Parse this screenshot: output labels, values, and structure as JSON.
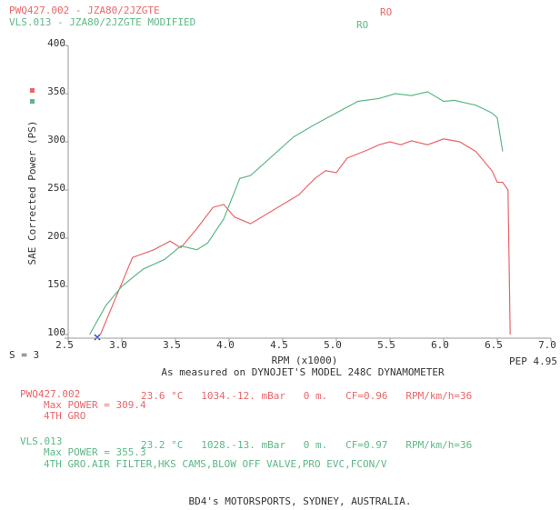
{
  "chart_data": {
    "type": "line",
    "title": "As measured on DYNOJET'S MODEL 248C DYNAMOMETER",
    "x_label": "RPM (x1000)",
    "y_label": "SAE Corrected Power (PS)",
    "xlim": [
      2.5,
      7.0
    ],
    "ylim": [
      100,
      400
    ],
    "xticks": [
      2.5,
      {
        "value": 3,
        "label": "3.0"
      },
      3.5,
      {
        "value": 4,
        "label": "4.0"
      },
      4.5,
      {
        "value": 5,
        "label": "5.0"
      },
      5.5,
      {
        "value": 6,
        "label": "6.0"
      },
      6.5,
      {
        "value": 7,
        "label": "7.0"
      }
    ],
    "yticks": [
      100,
      150,
      200,
      250,
      300,
      350,
      400
    ],
    "smoothing": "S = 3",
    "pep": "PEP 4.95",
    "series": [
      {
        "name": "PWQ427.002 - JZA80/2JZGTE",
        "tag": "RO",
        "color": "#e8676a",
        "x": [
          2.8,
          2.95,
          3.1,
          3.3,
          3.45,
          3.55,
          3.7,
          3.85,
          3.95,
          4.05,
          4.2,
          4.35,
          4.5,
          4.65,
          4.8,
          4.9,
          5.0,
          5.1,
          5.3,
          5.4,
          5.5,
          5.6,
          5.7,
          5.85,
          6.0,
          6.15,
          6.3,
          6.45,
          6.5,
          6.55,
          6.6,
          6.62
        ],
        "values": [
          100,
          140,
          180,
          188,
          197,
          190,
          210,
          232,
          235,
          222,
          215,
          225,
          235,
          245,
          262,
          270,
          268,
          283,
          292,
          297,
          300,
          297,
          301,
          297,
          303,
          300,
          290,
          270,
          258,
          258,
          250,
          100
        ]
      },
      {
        "name": "VLS.013 - JZA80/2JZGTE MODIFIED",
        "tag": "RO",
        "color": "#5db887",
        "x": [
          2.7,
          2.85,
          3.0,
          3.2,
          3.4,
          3.55,
          3.7,
          3.8,
          3.95,
          4.1,
          4.2,
          4.4,
          4.6,
          4.8,
          5.0,
          5.2,
          5.4,
          5.55,
          5.7,
          5.85,
          6.0,
          6.1,
          6.3,
          6.45,
          6.5,
          6.55
        ],
        "values": [
          100,
          130,
          150,
          168,
          178,
          192,
          188,
          195,
          220,
          262,
          265,
          285,
          305,
          318,
          330,
          342,
          345,
          350,
          348,
          352,
          342,
          343,
          338,
          330,
          325,
          290
        ]
      }
    ]
  },
  "runs": [
    {
      "id": "PWQ427.002",
      "conditions": "23.6 °C   1034.-12. mBar   0 m.   CF=0.96   RPM/km/h=36",
      "max_power": "Max POWER = 309.4",
      "notes": "4TH GRO"
    },
    {
      "id": "VLS.013",
      "conditions": "23.2 °C   1028.-13. mBar   0 m.   CF=0.97   RPM/km/h=36",
      "max_power": "Max POWER = 355.3",
      "notes": "4TH GRO.AIR FILTER,HKS CAMS,BLOW OFF VALVE,PRO EVC,FCON/V"
    }
  ],
  "footer": "BD4's MOTORSPORTS, SYDNEY, AUSTRALIA."
}
